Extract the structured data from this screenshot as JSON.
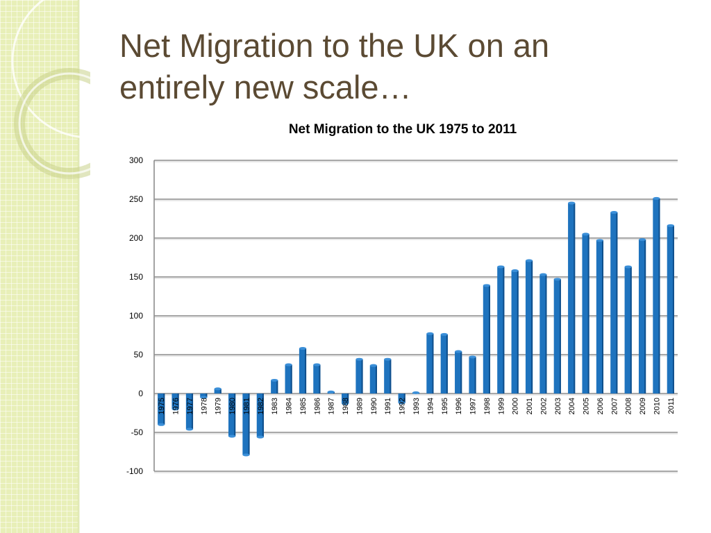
{
  "slide": {
    "title_line1": "Net Migration to the UK on an",
    "title_line2": "entirely new scale…"
  },
  "colors": {
    "bar": "#1e73be",
    "bar_dark": "#0f4f8c",
    "grid": "#8c8c8c",
    "title": "#5b4a33",
    "side_band": "#e8efb8"
  },
  "chart_data": {
    "type": "bar",
    "title": "Net Migration to the UK 1975 to 2011",
    "xlabel": "",
    "ylabel": "",
    "ylim": [
      -100,
      300
    ],
    "yticks": [
      300,
      250,
      200,
      150,
      100,
      50,
      0,
      -50,
      -100
    ],
    "grid": true,
    "legend": "none",
    "categories": [
      "1975",
      "1976",
      "1977",
      "1978",
      "1979",
      "1980",
      "1981",
      "1982",
      "1983",
      "1984",
      "1985",
      "1986",
      "1987",
      "1988",
      "1989",
      "1990",
      "1991",
      "1992",
      "1993",
      "1994",
      "1995",
      "1996",
      "1997",
      "1998",
      "1999",
      "2000",
      "2001",
      "2002",
      "2003",
      "2004",
      "2005",
      "2006",
      "2007",
      "2008",
      "2009",
      "2010",
      "2011"
    ],
    "values": [
      -40,
      -20,
      -46,
      -5,
      6,
      -55,
      -79,
      -56,
      17,
      37,
      58,
      37,
      2,
      -13,
      44,
      36,
      44,
      -12,
      1,
      77,
      76,
      54,
      47,
      139,
      163,
      158,
      171,
      153,
      147,
      245,
      205,
      197,
      233,
      163,
      198,
      251,
      216
    ]
  }
}
